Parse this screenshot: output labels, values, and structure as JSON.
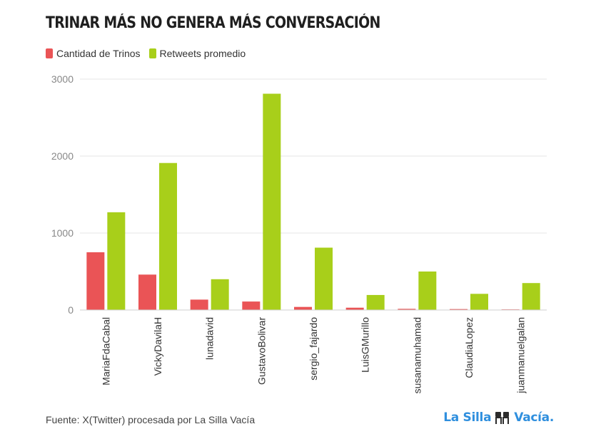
{
  "title": "TRINAR MÁS NO GENERA MÁS CONVERSACIÓN",
  "footer": "Fuente: X(Twitter) procesada por La Silla Vacía",
  "brand": {
    "part1": "La Silla",
    "part2": "Vacía.",
    "icon": "chairs-icon"
  },
  "colors": {
    "trinos": "#ea5456",
    "retweets": "#a8cf1a",
    "grid": "#e4e4e4",
    "tick": "#888888"
  },
  "chart_data": {
    "type": "bar",
    "title": "TRINAR MÁS NO GENERA MÁS CONVERSACIÓN",
    "categories": [
      "MariaFdaCabal",
      "VickyDavilaH",
      "lunadavid",
      "GustavoBolivar",
      "sergio_fajardo",
      "LuisGMurillo",
      "susanamuhamad",
      "ClaudiaLopez",
      "juanmanuelgalan"
    ],
    "series": [
      {
        "name": "Cantidad de Trinos",
        "values": [
          750,
          460,
          135,
          110,
          40,
          30,
          15,
          12,
          8
        ]
      },
      {
        "name": "Retweets promedio",
        "values": [
          1270,
          1910,
          400,
          2810,
          810,
          195,
          500,
          210,
          350
        ]
      }
    ],
    "ylim": [
      0,
      3000
    ],
    "yticks": [
      "0",
      "1000",
      "2000",
      "3000"
    ],
    "xlabel": "",
    "ylabel": "",
    "legend": "top-left",
    "grid": true
  }
}
